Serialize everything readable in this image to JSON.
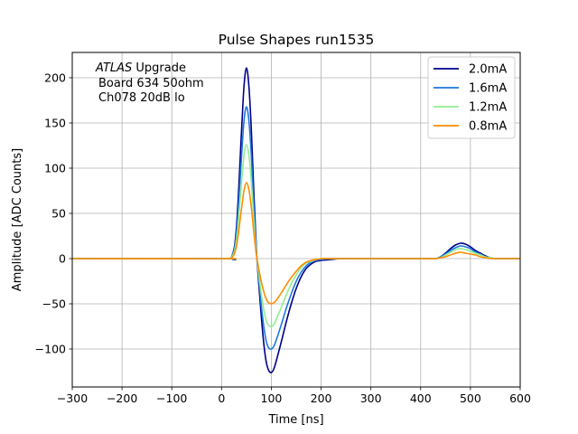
{
  "chart_data": {
    "type": "line",
    "title": "Pulse Shapes run1535",
    "xlabel": "Time [ns]",
    "ylabel": "Amplitude [ADC Counts]",
    "xlim": [
      -300,
      600
    ],
    "ylim": [
      -142,
      228
    ],
    "xticks": [
      -300,
      -200,
      -100,
      0,
      100,
      200,
      300,
      400,
      500,
      600
    ],
    "yticks": [
      -100,
      -50,
      0,
      50,
      100,
      150,
      200
    ],
    "xtick_labels": [
      "−300",
      "−200",
      "−100",
      "0",
      "100",
      "200",
      "300",
      "400",
      "500",
      "600"
    ],
    "ytick_labels": [
      "−100",
      "−50",
      "0",
      "50",
      "100",
      "150",
      "200"
    ],
    "grid": true,
    "legend_position": "top-right",
    "annotation": {
      "line1_italic": "ATLAS",
      "line1_rest": " Upgrade",
      "line2": "Board 634 50ohm",
      "line3": "Ch078 20dB lo"
    },
    "series": [
      {
        "name": "2.0mA",
        "color": "#00008b",
        "x": [
          -300,
          0,
          20,
          30,
          40,
          45,
          50,
          55,
          60,
          65,
          70,
          75,
          80,
          85,
          90,
          95,
          100,
          105,
          110,
          120,
          130,
          140,
          150,
          160,
          170,
          180,
          190,
          200,
          220,
          240,
          260,
          300,
          400,
          430,
          440,
          450,
          460,
          470,
          480,
          490,
          500,
          510,
          520,
          530,
          540,
          550,
          560,
          600
        ],
        "y": [
          0,
          0,
          2,
          35,
          140,
          190,
          211,
          190,
          140,
          70,
          10,
          -30,
          -65,
          -95,
          -115,
          -124,
          -126,
          -122,
          -113,
          -92,
          -70,
          -50,
          -33,
          -20,
          -11,
          -6,
          -3,
          -2,
          -1,
          0,
          0,
          0,
          0,
          0,
          2,
          6,
          11,
          15,
          17,
          16,
          13,
          9,
          6,
          3,
          1,
          0,
          0,
          0
        ]
      },
      {
        "name": "1.6mA",
        "color": "#1e78dc",
        "x": [
          -300,
          0,
          20,
          30,
          40,
          45,
          50,
          55,
          60,
          65,
          70,
          75,
          80,
          85,
          90,
          95,
          100,
          105,
          110,
          120,
          130,
          140,
          150,
          160,
          170,
          180,
          190,
          200,
          220,
          240,
          260,
          300,
          400,
          430,
          440,
          450,
          460,
          470,
          480,
          490,
          500,
          510,
          520,
          530,
          540,
          550,
          560,
          600
        ],
        "y": [
          0,
          0,
          2,
          28,
          112,
          152,
          168,
          152,
          112,
          55,
          8,
          -25,
          -53,
          -76,
          -92,
          -99,
          -100,
          -97,
          -90,
          -73,
          -55,
          -39,
          -25,
          -15,
          -8,
          -4,
          -2,
          -1,
          0,
          0,
          0,
          0,
          0,
          0,
          2,
          5,
          9,
          12,
          14,
          13,
          11,
          7,
          5,
          2,
          1,
          0,
          0,
          0
        ]
      },
      {
        "name": "1.2mA",
        "color": "#90ee90",
        "x": [
          -300,
          0,
          20,
          30,
          40,
          45,
          50,
          55,
          60,
          65,
          70,
          75,
          80,
          85,
          90,
          95,
          100,
          105,
          110,
          120,
          130,
          140,
          150,
          160,
          170,
          180,
          190,
          200,
          220,
          240,
          260,
          300,
          400,
          430,
          440,
          450,
          460,
          470,
          480,
          490,
          500,
          510,
          520,
          530,
          540,
          550,
          560,
          600
        ],
        "y": [
          0,
          0,
          2,
          21,
          84,
          114,
          126,
          114,
          84,
          42,
          6,
          -18,
          -40,
          -57,
          -69,
          -74,
          -75,
          -73,
          -67,
          -54,
          -40,
          -28,
          -18,
          -10,
          -5,
          -3,
          -1,
          0,
          0,
          0,
          0,
          0,
          0,
          0,
          1,
          4,
          7,
          10,
          11,
          10,
          8,
          6,
          4,
          2,
          1,
          0,
          0,
          0
        ]
      },
      {
        "name": "0.8mA",
        "color": "#ff8c00",
        "x": [
          -300,
          0,
          20,
          30,
          40,
          45,
          50,
          55,
          60,
          65,
          70,
          75,
          80,
          85,
          90,
          95,
          100,
          105,
          110,
          120,
          130,
          140,
          150,
          160,
          170,
          180,
          190,
          200,
          220,
          240,
          260,
          300,
          400,
          430,
          440,
          450,
          460,
          470,
          480,
          490,
          500,
          510,
          520,
          530,
          540,
          550,
          560,
          600
        ],
        "y": [
          0,
          0,
          1,
          14,
          55,
          75,
          84,
          76,
          56,
          28,
          4,
          -12,
          -26,
          -37,
          -45,
          -49,
          -50,
          -49,
          -46,
          -38,
          -29,
          -21,
          -14,
          -8,
          -4,
          -2,
          -1,
          0,
          0,
          0,
          0,
          0,
          0,
          0,
          1,
          2,
          4,
          6,
          7,
          6,
          5,
          4,
          2,
          1,
          0,
          0,
          0,
          0
        ]
      }
    ]
  }
}
